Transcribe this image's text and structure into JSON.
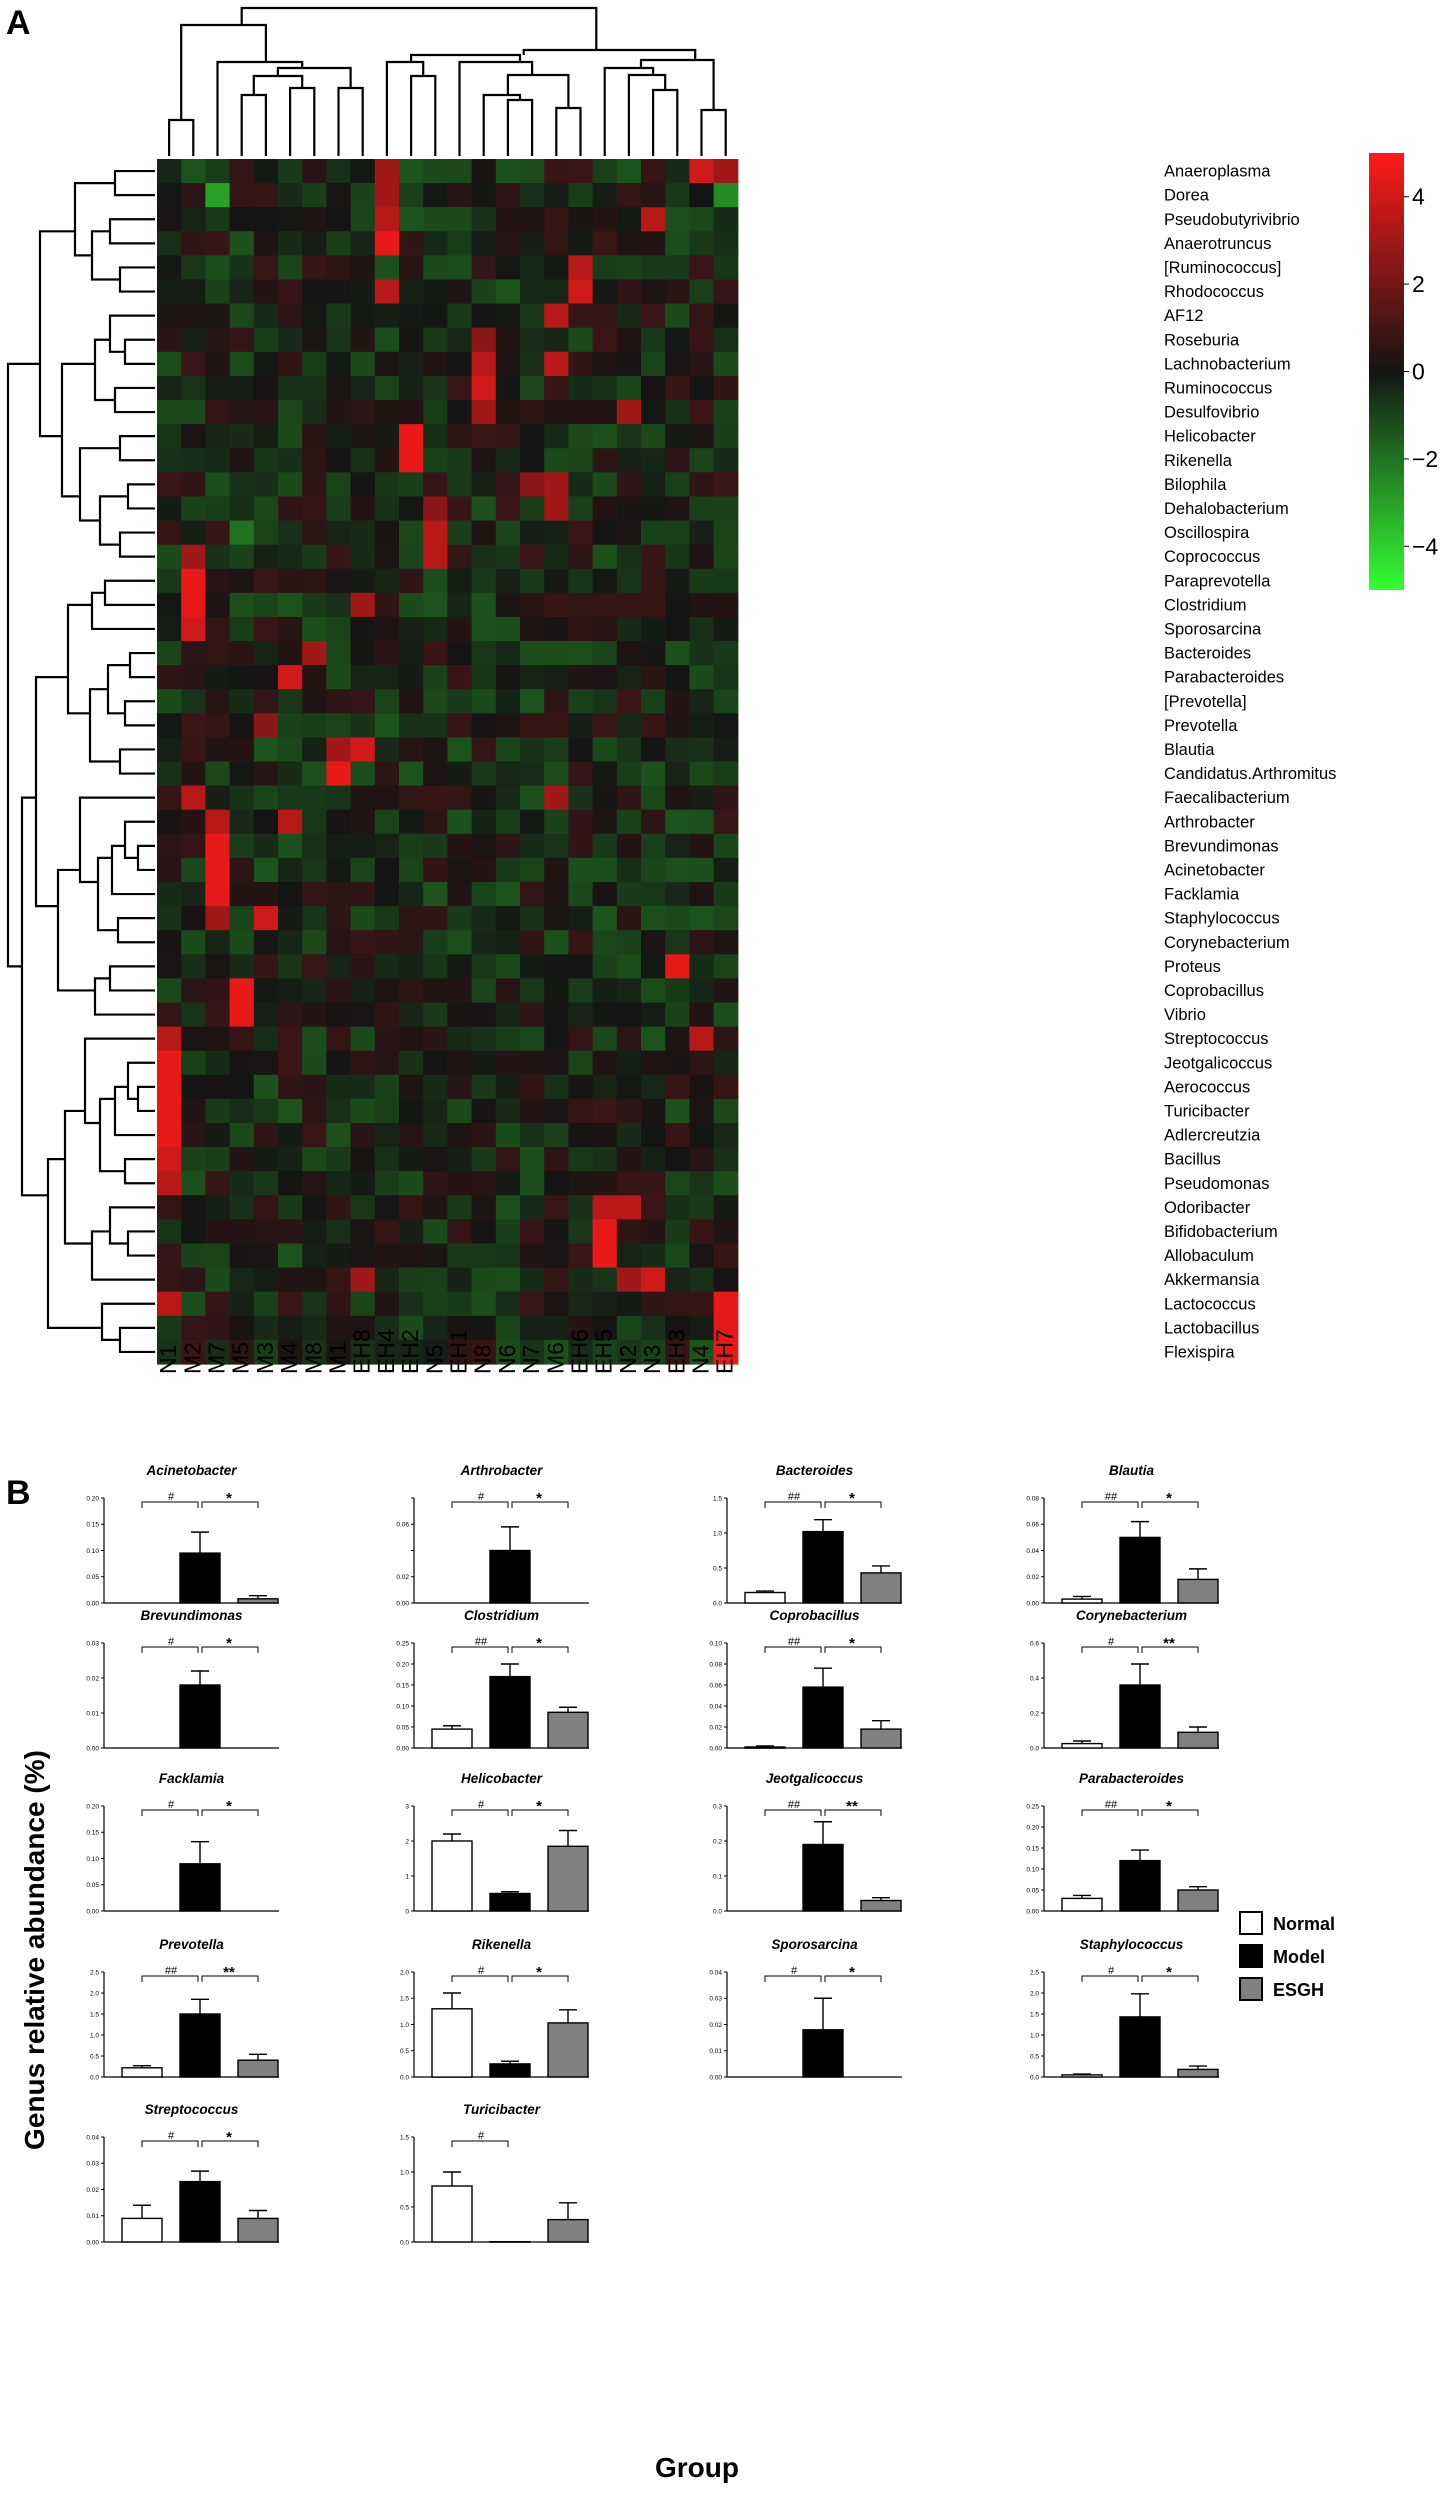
{
  "colors": {
    "low": "#33ff33",
    "mid": "#000000",
    "high": "#ff1a1a",
    "normal_bar": "#ffffff",
    "model_bar": "#000000",
    "esgh_bar": "#808080"
  },
  "chart_data": [
    {
      "type": "heatmap",
      "panel": "A",
      "columns": [
        "N1",
        "M2",
        "M7",
        "M5",
        "M3",
        "M4",
        "M8",
        "M1",
        "EH8",
        "EH4",
        "EH2",
        "N5",
        "EH1",
        "N8",
        "N6",
        "N7",
        "M6",
        "EH6",
        "EH5",
        "N2",
        "N3",
        "EH3",
        "N4",
        "EH7"
      ],
      "rows": [
        "Anaeroplasma",
        "Dorea",
        "Pseudobutyrivibrio",
        "Anaerotruncus",
        "[Ruminococcus]",
        "Rhodococcus",
        "AF12",
        "Roseburia",
        "Lachnobacterium",
        "Ruminococcus",
        "Desulfovibrio",
        "Helicobacter",
        "Rikenella",
        "Bilophila",
        "Dehalobacterium",
        "Oscillospira",
        "Coprococcus",
        "Paraprevotella",
        "Clostridium",
        "Sporosarcina",
        "Bacteroides",
        "Parabacteroides",
        "[Prevotella]",
        "Prevotella",
        "Blautia",
        "Candidatus.Arthromitus",
        "Faecalibacterium",
        "Arthrobacter",
        "Brevundimonas",
        "Acinetobacter",
        "Facklamia",
        "Staphylococcus",
        "Corynebacterium",
        "Proteus",
        "Coprobacillus",
        "Vibrio",
        "Streptococcus",
        "Jeotgalicoccus",
        "Aerococcus",
        "Turicibacter",
        "Adlercreutzia",
        "Bacillus",
        "Pseudomonas",
        "Odoribacter",
        "Bifidobacterium",
        "Allobaculum",
        "Akkermansia",
        "Lactococcus",
        "Lactobacillus",
        "Flexispira"
      ],
      "color_scale": {
        "min": -5,
        "max": 5,
        "ticks": [
          "4",
          "2",
          "0",
          "−2",
          "−4"
        ]
      },
      "highlights": [
        {
          "row": "Anaeroplasma",
          "col": "EH4",
          "value": 3.0
        },
        {
          "row": "Anaeroplasma",
          "col": "N4",
          "value": 4.0
        },
        {
          "row": "Anaeroplasma",
          "col": "EH7",
          "value": 3.0
        },
        {
          "row": "Dorea",
          "col": "M7",
          "value": -3.0
        },
        {
          "row": "Dorea",
          "col": "EH4",
          "value": 3.0
        },
        {
          "row": "Dorea",
          "col": "EH7",
          "value": -2.5
        },
        {
          "row": "Pseudobutyrivibrio",
          "col": "EH4",
          "value": 3.5
        },
        {
          "row": "Pseudobutyrivibrio",
          "col": "N3",
          "value": 3.5
        },
        {
          "row": "Anaerotruncus",
          "col": "EH4",
          "value": 4.5
        },
        {
          "row": "Rhodococcus",
          "col": "EH4",
          "value": 3.5
        },
        {
          "row": "[Ruminococcus]",
          "col": "EH6",
          "value": 3.5
        },
        {
          "row": "Rhodococcus",
          "col": "EH6",
          "value": 4.0
        },
        {
          "row": "AF12",
          "col": "M6",
          "value": 3.5
        },
        {
          "row": "Roseburia",
          "col": "N8",
          "value": 2.5
        },
        {
          "row": "Lachnobacterium",
          "col": "N8",
          "value": 3.5
        },
        {
          "row": "Lachnobacterium",
          "col": "M6",
          "value": 3.5
        },
        {
          "row": "Ruminococcus",
          "col": "N8",
          "value": 4.0
        },
        {
          "row": "Desulfovibrio",
          "col": "N8",
          "value": 3.0
        },
        {
          "row": "Desulfovibrio",
          "col": "N2",
          "value": 3.0
        },
        {
          "row": "Helicobacter",
          "col": "EH2",
          "value": 4.5
        },
        {
          "row": "Rikenella",
          "col": "EH2",
          "value": 4.5
        },
        {
          "row": "Bilophila",
          "col": "N7",
          "value": 2.5
        },
        {
          "row": "Bilophila",
          "col": "M6",
          "value": 3.0
        },
        {
          "row": "Dehalobacterium",
          "col": "M6",
          "value": 3.0
        },
        {
          "row": "Dehalobacterium",
          "col": "N5",
          "value": 2.5
        },
        {
          "row": "Oscillospira",
          "col": "N5",
          "value": 3.5
        },
        {
          "row": "Oscillospira",
          "col": "M5",
          "value": -2.0
        },
        {
          "row": "Coprococcus",
          "col": "N5",
          "value": 3.5
        },
        {
          "row": "Coprococcus",
          "col": "M2",
          "value": 3.0
        },
        {
          "row": "Paraprevotella",
          "col": "M2",
          "value": 4.5
        },
        {
          "row": "Clostridium",
          "col": "M2",
          "value": 4.5
        },
        {
          "row": "Sporosarcina",
          "col": "M2",
          "value": 4.0
        },
        {
          "row": "Clostridium",
          "col": "EH8",
          "value": 3.0
        },
        {
          "row": "Bacteroides",
          "col": "M8",
          "value": 3.0
        },
        {
          "row": "Parabacteroides",
          "col": "M4",
          "value": 4.0
        },
        {
          "row": "Prevotella",
          "col": "M3",
          "value": 2.5
        },
        {
          "row": "Blautia",
          "col": "EH8",
          "value": 4.0
        },
        {
          "row": "Blautia",
          "col": "M1",
          "value": 3.0
        },
        {
          "row": "Candidatus.Arthromitus",
          "col": "M1",
          "value": 4.5
        },
        {
          "row": "Faecalibacterium",
          "col": "M2",
          "value": 3.5
        },
        {
          "row": "Faecalibacterium",
          "col": "M6",
          "value": 3.0
        },
        {
          "row": "Arthrobacter",
          "col": "M7",
          "value": 3.5
        },
        {
          "row": "Arthrobacter",
          "col": "M4",
          "value": 3.5
        },
        {
          "row": "Brevundimonas",
          "col": "M7",
          "value": 4.5
        },
        {
          "row": "Acinetobacter",
          "col": "M7",
          "value": 4.5
        },
        {
          "row": "Facklamia",
          "col": "M7",
          "value": 4.5
        },
        {
          "row": "Staphylococcus",
          "col": "M3",
          "value": 4.0
        },
        {
          "row": "Staphylococcus",
          "col": "M7",
          "value": 3.0
        },
        {
          "row": "Proteus",
          "col": "EH3",
          "value": 4.5
        },
        {
          "row": "Coprobacillus",
          "col": "M5",
          "value": 4.5
        },
        {
          "row": "Vibrio",
          "col": "M5",
          "value": 4.5
        },
        {
          "row": "Streptococcus",
          "col": "N1",
          "value": 3.5
        },
        {
          "row": "Streptococcus",
          "col": "N4",
          "value": 3.5
        },
        {
          "row": "Jeotgalicoccus",
          "col": "N1",
          "value": 4.5
        },
        {
          "row": "Aerococcus",
          "col": "N1",
          "value": 4.5
        },
        {
          "row": "Turicibacter",
          "col": "N1",
          "value": 4.5
        },
        {
          "row": "Adlercreutzia",
          "col": "N1",
          "value": 4.5
        },
        {
          "row": "Bacillus",
          "col": "N1",
          "value": 4.0
        },
        {
          "row": "Pseudomonas",
          "col": "N1",
          "value": 3.5
        },
        {
          "row": "Odoribacter",
          "col": "EH5",
          "value": 3.5
        },
        {
          "row": "Odoribacter",
          "col": "N2",
          "value": 3.5
        },
        {
          "row": "Bifidobacterium",
          "col": "EH5",
          "value": 4.5
        },
        {
          "row": "Allobaculum",
          "col": "EH5",
          "value": 4.5
        },
        {
          "row": "Akkermansia",
          "col": "N3",
          "value": 4.0
        },
        {
          "row": "Akkermansia",
          "col": "N2",
          "value": 3.0
        },
        {
          "row": "Akkermansia",
          "col": "EH8",
          "value": 3.0
        },
        {
          "row": "Lactococcus",
          "col": "N1",
          "value": 3.5
        },
        {
          "row": "Lactococcus",
          "col": "EH7",
          "value": 4.5
        },
        {
          "row": "Lactobacillus",
          "col": "EH7",
          "value": 4.5
        },
        {
          "row": "Flexispira",
          "col": "EH7",
          "value": 4.5
        }
      ]
    },
    {
      "type": "bar",
      "panel": "B",
      "ylabel": "Genus relative abundance (%)",
      "xlabel": "Group",
      "legend": [
        "Normal",
        "Model",
        "ESGH"
      ],
      "legend_position": "right",
      "panels": [
        {
          "title": "Acinetobacter",
          "ymax": 0.2,
          "ticks": [
            "0.20",
            "0.15",
            "0.10",
            "0.05",
            "0.00"
          ],
          "values": [
            0,
            0.095,
            0.008
          ],
          "errors": [
            0,
            0.04,
            0.006
          ],
          "sig": [
            [
              "#",
              "*"
            ]
          ]
        },
        {
          "title": "Arthrobacter",
          "ymax": 0.08,
          "ticks": [
            "",
            "0.06",
            "",
            "0.02",
            "0.00"
          ],
          "values": [
            0,
            0.04,
            0
          ],
          "errors": [
            0,
            0.018,
            0
          ],
          "sig": [
            [
              "#",
              "*"
            ]
          ]
        },
        {
          "title": "Bacteroides",
          "ymax": 1.5,
          "ticks": [
            "1.5",
            "1.0",
            "0.5",
            "0.0"
          ],
          "values": [
            0.15,
            1.02,
            0.43
          ],
          "errors": [
            0.02,
            0.17,
            0.1
          ],
          "sig": [
            [
              "##",
              "*"
            ]
          ]
        },
        {
          "title": "Blautia",
          "ymax": 0.08,
          "ticks": [
            "0.08",
            "0.06",
            "0.04",
            "0.02",
            "0.00"
          ],
          "values": [
            0.003,
            0.05,
            0.018
          ],
          "errors": [
            0.002,
            0.012,
            0.008
          ],
          "sig": [
            [
              "##",
              "*"
            ]
          ]
        },
        {
          "title": "Brevundimonas",
          "ymax": 0.03,
          "ticks": [
            "0.03",
            "0.02",
            "0.01",
            "0.00"
          ],
          "values": [
            0,
            0.018,
            0
          ],
          "errors": [
            0,
            0.004,
            0
          ],
          "sig": [
            [
              "#",
              "*"
            ]
          ]
        },
        {
          "title": "Clostridium",
          "ymax": 0.25,
          "ticks": [
            "0.25",
            "0.20",
            "0.15",
            "0.10",
            "0.05",
            "0.00"
          ],
          "values": [
            0.045,
            0.17,
            0.085
          ],
          "errors": [
            0.008,
            0.03,
            0.012
          ],
          "sig": [
            [
              "##",
              "*"
            ]
          ]
        },
        {
          "title": "Coprobacillus",
          "ymax": 0.1,
          "ticks": [
            "0.10",
            "0.08",
            "0.06",
            "0.04",
            "0.02",
            "0.00"
          ],
          "values": [
            0.001,
            0.058,
            0.018
          ],
          "errors": [
            0.001,
            0.018,
            0.008
          ],
          "sig": [
            [
              "##",
              "*"
            ]
          ]
        },
        {
          "title": "Corynebacterium",
          "ymax": 0.6,
          "ticks": [
            "0.6",
            "0.4",
            "0.2",
            "0.0"
          ],
          "values": [
            0.025,
            0.36,
            0.09
          ],
          "errors": [
            0.015,
            0.12,
            0.03
          ],
          "sig": [
            [
              "#",
              "**"
            ]
          ]
        },
        {
          "title": "Facklamia",
          "ymax": 0.2,
          "ticks": [
            "0.20",
            "0.15",
            "0.10",
            "0.05",
            "0.00"
          ],
          "values": [
            0,
            0.09,
            0
          ],
          "errors": [
            0,
            0.042,
            0
          ],
          "sig": [
            [
              "#",
              "*"
            ]
          ]
        },
        {
          "title": "Helicobacter",
          "ymax": 3,
          "ticks": [
            "3",
            "2",
            "1",
            "0"
          ],
          "values": [
            2.0,
            0.5,
            1.85
          ],
          "errors": [
            0.2,
            0.05,
            0.45
          ],
          "sig": [
            [
              "#",
              "*"
            ]
          ]
        },
        {
          "title": "Jeotgalicoccus",
          "ymax": 0.3,
          "ticks": [
            "0.3",
            "0.2",
            "0.1",
            "0.0"
          ],
          "values": [
            0,
            0.19,
            0.03
          ],
          "errors": [
            0,
            0.065,
            0.008
          ],
          "sig": [
            [
              "##",
              "**"
            ]
          ]
        },
        {
          "title": "Parabacteroides",
          "ymax": 0.25,
          "ticks": [
            "0.25",
            "0.20",
            "0.15",
            "0.10",
            "0.05",
            "0.00"
          ],
          "values": [
            0.03,
            0.12,
            0.05
          ],
          "errors": [
            0.007,
            0.025,
            0.008
          ],
          "sig": [
            [
              "##",
              "*"
            ]
          ]
        },
        {
          "title": "Prevotella",
          "ymax": 2.5,
          "ticks": [
            "2.5",
            "2.0",
            "1.5",
            "1.0",
            "0.5",
            "0.0"
          ],
          "values": [
            0.22,
            1.5,
            0.4
          ],
          "errors": [
            0.05,
            0.35,
            0.14
          ],
          "sig": [
            [
              "##",
              "**"
            ]
          ]
        },
        {
          "title": "Rikenella",
          "ymax": 2.0,
          "ticks": [
            "2.0",
            "1.5",
            "1.0",
            "0.5",
            "0.0"
          ],
          "values": [
            1.3,
            0.25,
            1.03
          ],
          "errors": [
            0.3,
            0.05,
            0.25
          ],
          "sig": [
            [
              "#",
              "*"
            ]
          ]
        },
        {
          "title": "Sporosarcina",
          "ymax": 0.04,
          "ticks": [
            "0.04",
            "0.03",
            "0.02",
            "0.01",
            "0.00"
          ],
          "values": [
            0,
            0.018,
            0
          ],
          "errors": [
            0,
            0.012,
            0
          ],
          "sig": [
            [
              "#",
              "*"
            ]
          ]
        },
        {
          "title": "Staphylococcus",
          "ymax": 2.5,
          "ticks": [
            "2.5",
            "2.0",
            "1.5",
            "1.0",
            "0.5",
            "0.0"
          ],
          "values": [
            0.05,
            1.43,
            0.18
          ],
          "errors": [
            0.02,
            0.55,
            0.08
          ],
          "sig": [
            [
              "#",
              "*"
            ]
          ]
        },
        {
          "title": "Streptococcus",
          "ymax": 0.04,
          "ticks": [
            "0.04",
            "0.03",
            "0.02",
            "0.01",
            "0.00"
          ],
          "values": [
            0.009,
            0.023,
            0.009
          ],
          "errors": [
            0.005,
            0.004,
            0.003
          ],
          "sig": [
            [
              "#",
              "*"
            ]
          ]
        },
        {
          "title": "Turicibacter",
          "ymax": 1.5,
          "ticks": [
            "1.5",
            "1.0",
            "0.5",
            "0.0"
          ],
          "values": [
            0.8,
            0.005,
            0.32
          ],
          "errors": [
            0.2,
            0.003,
            0.24
          ],
          "sig": [
            [
              "#",
              ""
            ]
          ]
        }
      ]
    }
  ]
}
